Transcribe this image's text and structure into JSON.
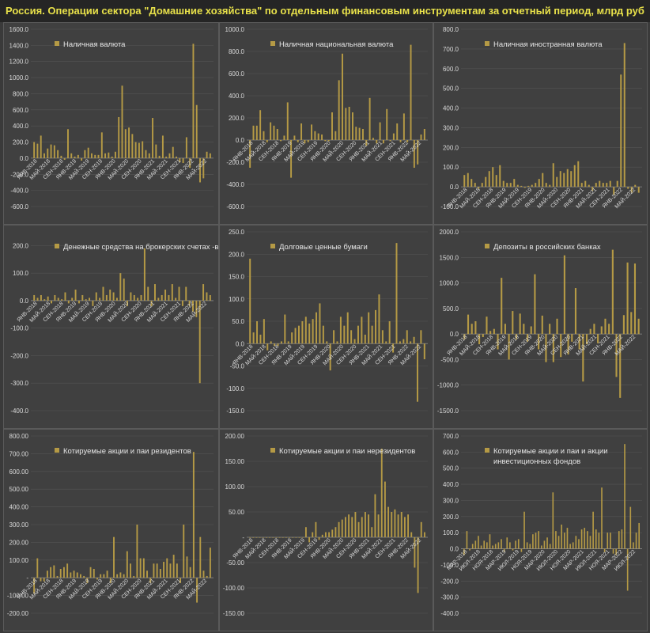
{
  "title": "Россия. Операции сектора \"Домашние хозяйства\" по отдельным финансовым инструментам за отчетный период, млрд руб",
  "colors": {
    "bar": "#b59a45",
    "background": "#404040",
    "title_text": "#e8e14a"
  },
  "chart_data": [
    {
      "type": "bar",
      "legend": [
        "Наличная валюта"
      ],
      "ylim": [
        -600,
        1600
      ],
      "yticks": [
        -600,
        -400,
        -200,
        0,
        200,
        400,
        600,
        800,
        1000,
        1200,
        1400,
        1600
      ],
      "ytick_labels": [
        "-600.0",
        "-400.0",
        "-200.0",
        "0.0",
        "200.0",
        "400.0",
        "600.0",
        "800.0",
        "1000.0",
        "1200.0",
        "1400.0",
        "1600.0"
      ],
      "xtick_labels": [
        "ЯНВ-2018",
        "МАЙ-2018",
        "СЕН-2018",
        "ЯНВ-2019",
        "МАЙ-2019",
        "СЕН-2019",
        "ЯНВ-2020",
        "МАЙ-2020",
        "СЕН-2020",
        "ЯНВ-2021",
        "МАЙ-2021",
        "СЕН-2021",
        "ЯНВ-2022",
        "МАЙ-2022"
      ],
      "values": [
        200,
        180,
        280,
        60,
        120,
        170,
        160,
        100,
        30,
        -20,
        360,
        60,
        20,
        40,
        -30,
        100,
        130,
        60,
        40,
        40,
        320,
        60,
        70,
        20,
        80,
        510,
        900,
        360,
        380,
        300,
        200,
        190,
        210,
        100,
        60,
        500,
        170,
        30,
        280,
        20,
        60,
        140,
        20,
        -50,
        -60,
        260,
        -120,
        1420,
        660,
        -300,
        -250,
        80,
        60
      ]
    },
    {
      "type": "bar",
      "legend": [
        "Наличная национальная валюта"
      ],
      "ylim": [
        -600,
        1000
      ],
      "yticks": [
        -600,
        -400,
        -200,
        0,
        200,
        400,
        600,
        800,
        1000
      ],
      "ytick_labels": [
        "-600.0",
        "-400.0",
        "-200.0",
        "0.0",
        "200.0",
        "400.0",
        "600.0",
        "800.0",
        "1000.0"
      ],
      "xtick_labels": [
        "ЯНВ-2018",
        "МАЙ-2018",
        "СЕН-2018",
        "ЯНВ-2019",
        "МАЙ-2019",
        "СЕН-2019",
        "ЯНВ-2020",
        "МАЙ-2020",
        "СЕН-2020",
        "ЯНВ-2021",
        "МАЙ-2021",
        "СЕН-2021",
        "ЯНВ-2022",
        "МАЙ-2022"
      ],
      "values": [
        -250,
        130,
        130,
        270,
        80,
        -20,
        160,
        130,
        100,
        -10,
        40,
        340,
        -340,
        40,
        -20,
        150,
        -30,
        -20,
        140,
        80,
        60,
        50,
        -10,
        -10,
        250,
        80,
        540,
        780,
        290,
        300,
        250,
        120,
        110,
        100,
        -50,
        380,
        20,
        -30,
        160,
        -30,
        280,
        -10,
        60,
        150,
        -20,
        240,
        -20,
        860,
        -250,
        -220,
        50,
        100
      ]
    },
    {
      "type": "bar",
      "legend": [
        "Наличная иностранная валюта"
      ],
      "ylim": [
        -100,
        800
      ],
      "yticks": [
        -100,
        0,
        100,
        200,
        300,
        400,
        500,
        600,
        700,
        800
      ],
      "ytick_labels": [
        "-100.0",
        "0.0",
        "100.0",
        "200.0",
        "300.0",
        "400.0",
        "500.0",
        "600.0",
        "700.0",
        "800.0"
      ],
      "xtick_labels": [
        "ЯНВ-2018",
        "МАЙ-2018",
        "СЕН-2018",
        "ЯНВ-2019",
        "МАЙ-2019",
        "СЕН-2019",
        "ЯНВ-2020",
        "МАЙ-2020",
        "СЕН-2020",
        "ЯНВ-2021",
        "МАЙ-2021",
        "СЕН-2021",
        "ЯНВ-2022",
        "МАЙ-2022"
      ],
      "values": [
        60,
        70,
        40,
        20,
        -10,
        20,
        50,
        80,
        100,
        60,
        110,
        30,
        20,
        20,
        40,
        10,
        5,
        -5,
        5,
        10,
        20,
        40,
        70,
        20,
        10,
        120,
        50,
        80,
        70,
        90,
        80,
        110,
        130,
        20,
        30,
        10,
        -20,
        20,
        30,
        20,
        20,
        30,
        -40,
        30,
        570,
        730,
        -10,
        -30,
        10,
        -30
      ]
    },
    {
      "type": "bar",
      "legend": [
        "Денежные средства на брокерских счетах -всего"
      ],
      "ylim": [
        -400,
        250
      ],
      "yticks": [
        -400,
        -300,
        -200,
        -100,
        0,
        100,
        200
      ],
      "ytick_labels": [
        "-400.0",
        "-300.0",
        "-200.0",
        "-100.0",
        "0.0",
        "100.0",
        "200.0"
      ],
      "xtick_labels": [
        "ЯНВ-2018",
        "МАЙ-2018",
        "СЕН-2018",
        "ЯНВ-2019",
        "МАЙ-2019",
        "СЕН-2019",
        "ЯНВ-2020",
        "МАЙ-2020",
        "СЕН-2020",
        "ЯНВ-2021",
        "МАЙ-2021",
        "СЕН-2021",
        "ЯНВ-2022",
        "МАЙ-2022"
      ],
      "values": [
        20,
        10,
        20,
        5,
        15,
        -10,
        20,
        10,
        5,
        30,
        -10,
        10,
        40,
        -10,
        20,
        5,
        10,
        -20,
        30,
        10,
        50,
        20,
        40,
        30,
        10,
        100,
        80,
        -20,
        30,
        20,
        10,
        20,
        190,
        50,
        -20,
        60,
        10,
        20,
        40,
        20,
        60,
        10,
        50,
        -20,
        50,
        -20,
        -40,
        -60,
        -300,
        60,
        30,
        20
      ]
    },
    {
      "type": "bar",
      "legend": [
        "Долговые ценные бумаги"
      ],
      "ylim": [
        -150,
        250
      ],
      "yticks": [
        -150,
        -100,
        -50,
        0,
        50,
        100,
        150,
        200,
        250
      ],
      "ytick_labels": [
        "-150.0",
        "-100.0",
        "-50.0",
        "0.0",
        "50.0",
        "100.0",
        "150.0",
        "200.0",
        "250.0"
      ],
      "xtick_labels": [
        "ЯНВ-2018",
        "МАЙ-2018",
        "СЕН-2018",
        "ЯНВ-2019",
        "МАЙ-2019",
        "СЕН-2019",
        "ЯНВ-2020",
        "МАЙ-2020",
        "СЕН-2020",
        "ЯНВ-2021",
        "МАЙ-2021",
        "СЕН-2021",
        "ЯНВ-2022",
        "МАЙ-2022"
      ],
      "values": [
        190,
        25,
        50,
        20,
        55,
        -15,
        5,
        -5,
        -5,
        5,
        65,
        5,
        25,
        35,
        40,
        50,
        60,
        45,
        55,
        70,
        90,
        40,
        5,
        -60,
        30,
        5,
        60,
        40,
        70,
        30,
        10,
        40,
        60,
        20,
        70,
        40,
        75,
        110,
        30,
        5,
        50,
        -20,
        225,
        5,
        10,
        30,
        5,
        15,
        -130,
        30,
        -35
      ]
    },
    {
      "type": "bar",
      "legend": [
        "Депозиты в российских банках"
      ],
      "ylim": [
        -1500,
        2000
      ],
      "yticks": [
        -1500,
        -1000,
        -500,
        0,
        500,
        1000,
        1500,
        2000
      ],
      "ytick_labels": [
        "-1500.0",
        "-1000.0",
        "-500.0",
        "0.0",
        "500.0",
        "1000.0",
        "1500.0",
        "2000.0"
      ],
      "xtick_labels": [
        "ЯНВ-2018",
        "МАЙ-2018",
        "СЕН-2018",
        "ЯНВ-2019",
        "МАЙ-2019",
        "СЕН-2019",
        "ЯНВ-2020",
        "МАЙ-2020",
        "СЕН-2020",
        "ЯНВ-2021",
        "МАЙ-2021",
        "СЕН-2021",
        "ЯНВ-2022",
        "МАЙ-2022"
      ],
      "values": [
        -100,
        380,
        200,
        250,
        -200,
        -60,
        340,
        60,
        100,
        -300,
        1100,
        200,
        -500,
        450,
        -100,
        400,
        200,
        -150,
        150,
        1170,
        -300,
        360,
        -550,
        200,
        -550,
        300,
        -450,
        1540,
        -400,
        -150,
        900,
        -300,
        -930,
        -200,
        100,
        200,
        -180,
        150,
        300,
        200,
        1650,
        -840,
        -1250,
        370,
        1400,
        430,
        1380,
        300
      ]
    },
    {
      "type": "bar",
      "legend": [
        "Котируемые акции и паи резидентов"
      ],
      "ylim": [
        -200,
        800
      ],
      "yticks": [
        -200,
        -100,
        0,
        100,
        200,
        300,
        400,
        500,
        600,
        700,
        800
      ],
      "ytick_labels": [
        "-200.00",
        "-100.00",
        "-",
        "100.00",
        "200.00",
        "300.00",
        "400.00",
        "500.00",
        "600.00",
        "700.00",
        "800.00"
      ],
      "xtick_labels": [
        "ЯНВ-2018",
        "МАЙ-2018",
        "СЕН-2018",
        "ЯНВ-2019",
        "МАЙ-2019",
        "СЕН-2019",
        "ЯНВ-2020",
        "МАЙ-2020",
        "СЕН-2020",
        "ЯНВ-2021",
        "МАЙ-2021",
        "СЕН-2021",
        "ЯНВ-2022",
        "МАЙ-2022"
      ],
      "values": [
        -90,
        110,
        -20,
        -20,
        40,
        60,
        70,
        10,
        50,
        60,
        80,
        30,
        40,
        30,
        20,
        10,
        -30,
        60,
        50,
        -10,
        20,
        20,
        40,
        -30,
        230,
        20,
        30,
        20,
        150,
        80,
        10,
        300,
        110,
        110,
        40,
        -30,
        80,
        80,
        50,
        90,
        110,
        80,
        130,
        80,
        -30,
        300,
        120,
        60,
        710,
        -140,
        230,
        40,
        10,
        170
      ]
    },
    {
      "type": "bar",
      "legend": [
        "Котируемые акции и паи нерезидентов"
      ],
      "ylim": [
        -150,
        200
      ],
      "yticks": [
        -150,
        -100,
        -50,
        0,
        50,
        100,
        150,
        200
      ],
      "ytick_labels": [
        "-150.00",
        "-100.00",
        "-50.00",
        "-",
        "50.00",
        "100.00",
        "150.00",
        "200.00"
      ],
      "xtick_labels": [
        "ЯНВ-2018",
        "МАЙ-2018",
        "СЕН-2018",
        "ЯНВ-2019",
        "МАЙ-2019",
        "СЕН-2019",
        "ЯНВ-2020",
        "МАЙ-2020",
        "СЕН-2020",
        "ЯНВ-2021",
        "МАЙ-2021",
        "СЕН-2021",
        "ЯНВ-2022",
        "МАЙ-2022"
      ],
      "values": [
        0,
        0,
        0,
        0,
        0,
        0,
        0,
        0,
        0,
        0,
        0,
        0,
        0,
        0,
        0,
        0,
        0,
        20,
        -10,
        10,
        30,
        -5,
        5,
        10,
        10,
        15,
        20,
        30,
        35,
        40,
        45,
        40,
        50,
        30,
        40,
        50,
        45,
        20,
        85,
        45,
        175,
        110,
        60,
        50,
        55,
        45,
        50,
        40,
        45,
        10,
        -60,
        -110,
        30,
        10
      ]
    },
    {
      "type": "bar",
      "legend": [
        "Котируемые акции и паи и акции",
        "инвестиционных фондов"
      ],
      "ylim": [
        -400,
        700
      ],
      "yticks": [
        -400,
        -300,
        -200,
        -100,
        0,
        100,
        200,
        300,
        400,
        500,
        600,
        700
      ],
      "ytick_labels": [
        "-400.0",
        "-300.0",
        "-200.0",
        "-100.0",
        "0.0",
        "100.0",
        "200.0",
        "300.0",
        "400.0",
        "500.0",
        "600.0",
        "700.0"
      ],
      "xtick_labels": [
        "МАР-2018",
        "ИЮЛ-2018",
        "НОЯ-2018",
        "МАР-2019",
        "ИЮЛ-2019",
        "НОЯ-2019",
        "МАР-2020",
        "ИЮЛ-2020",
        "НОЯ-2020",
        "МАР-2021",
        "ИЮЛ-2021",
        "НОЯ-2021",
        "МАР-2022",
        "ИЮЛ-2022"
      ],
      "values": [
        -40,
        110,
        -10,
        30,
        50,
        80,
        20,
        50,
        40,
        90,
        20,
        30,
        40,
        60,
        -20,
        70,
        40,
        -10,
        50,
        60,
        -20,
        230,
        40,
        30,
        90,
        100,
        110,
        20,
        50,
        70,
        30,
        350,
        110,
        80,
        150,
        100,
        130,
        30,
        40,
        80,
        60,
        120,
        130,
        110,
        80,
        230,
        120,
        100,
        380,
        -20,
        100,
        100,
        -30,
        -40,
        110,
        120,
        650,
        -260,
        260,
        40,
        100,
        160
      ]
    }
  ]
}
